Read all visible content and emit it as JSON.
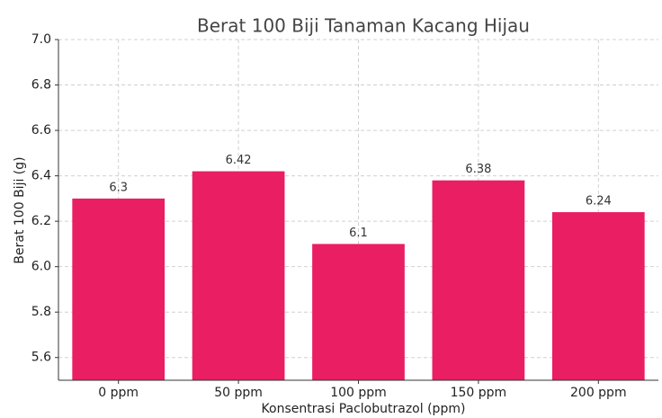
{
  "chart_data": {
    "type": "bar",
    "title": "Berat 100 Biji Tanaman Kacang Hijau",
    "xlabel": "Konsentrasi Paclobutrazol (ppm)",
    "ylabel": "Berat 100 Biji (g)",
    "categories": [
      "0 ppm",
      "50 ppm",
      "100 ppm",
      "150 ppm",
      "200 ppm"
    ],
    "values": [
      6.3,
      6.42,
      6.1,
      6.38,
      6.24
    ],
    "color": "#e91e63",
    "ylim": [
      5.5,
      7.0
    ],
    "yticks": [
      5.6,
      5.8,
      {
        "value": 6,
        "label": "6.0"
      },
      6.2,
      6.4,
      6.6,
      6.8,
      {
        "value": 7,
        "label": "7.0"
      }
    ],
    "grid": true
  }
}
